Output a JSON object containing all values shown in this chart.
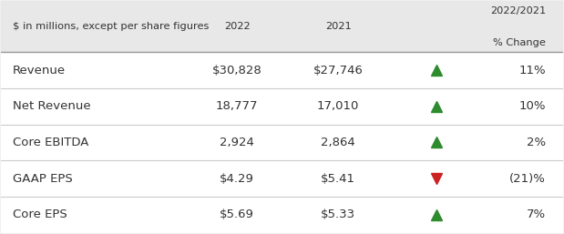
{
  "header_subtitle": "$ in millions, except per share figures",
  "col_2022": "2022",
  "col_2021": "2021",
  "col_change_line1": "2022/2021",
  "col_change_line2": "% Change",
  "rows": [
    {
      "label": "Revenue",
      "val2022": "$30,828",
      "val2021": "$27,746",
      "direction": "up",
      "change": "11%"
    },
    {
      "label": "Net Revenue",
      "val2022": "18,777",
      "val2021": "17,010",
      "direction": "up",
      "change": "10%"
    },
    {
      "label": "Core EBITDA",
      "val2022": "2,924",
      "val2021": "2,864",
      "direction": "up",
      "change": "2%"
    },
    {
      "label": "GAAP EPS",
      "val2022": "$4.29",
      "val2021": "$5.41",
      "direction": "down",
      "change": "(21)%"
    },
    {
      "label": "Core EPS",
      "val2022": "$5.69",
      "val2021": "$5.33",
      "direction": "up",
      "change": "7%"
    }
  ],
  "bg_color": "#f0f0f0",
  "header_bg": "#e8e8e8",
  "table_bg": "#ffffff",
  "text_color": "#333333",
  "header_line_color": "#999999",
  "line_color": "#cccccc",
  "up_color": "#2e8b2e",
  "down_color": "#cc2222",
  "header_font_size": 8.2,
  "row_font_size": 9.5
}
